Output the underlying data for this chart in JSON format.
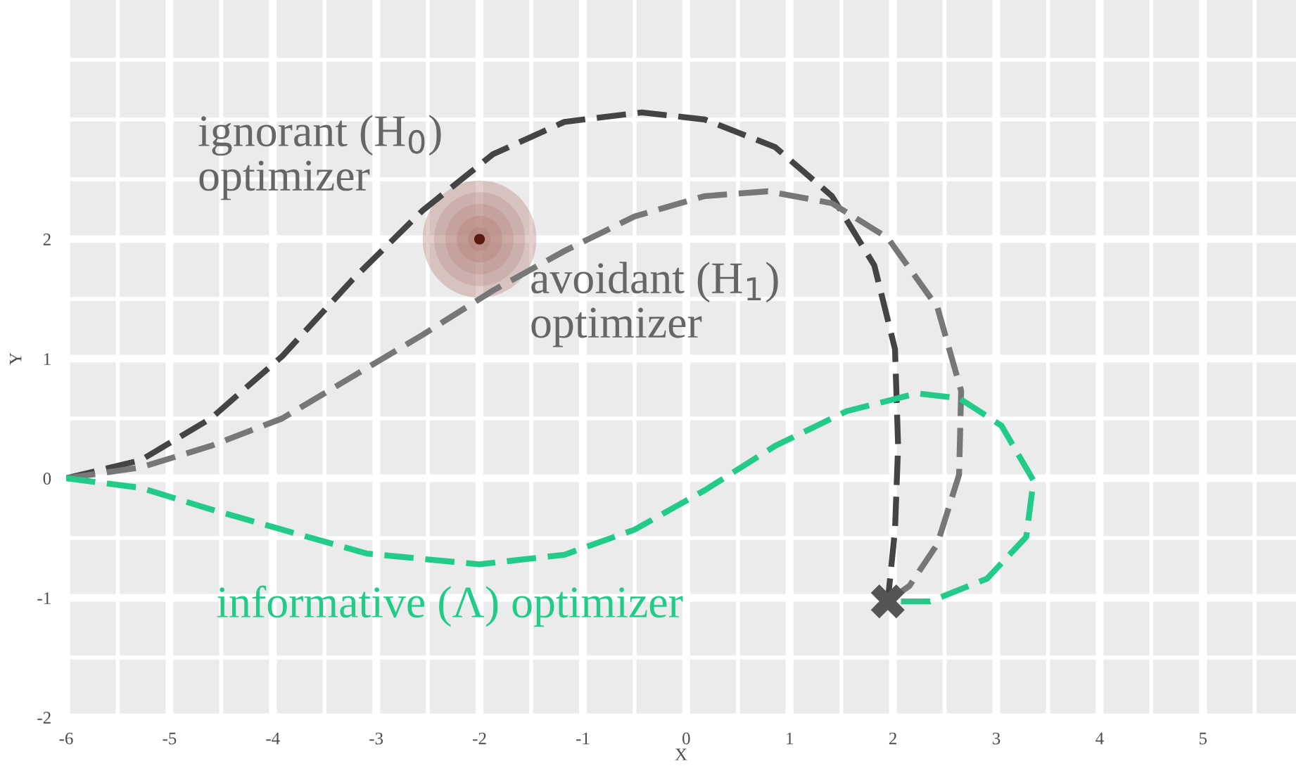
{
  "chart_data": {
    "type": "line",
    "xlabel": "X",
    "ylabel": "Y",
    "xlim": [
      -6,
      5.9
    ],
    "ylim": [
      -2,
      4
    ],
    "xticks": [
      -6,
      -5,
      -4,
      -3,
      -2,
      -1,
      0,
      1,
      2,
      3,
      4,
      5
    ],
    "yticks": [
      -2,
      -1,
      0,
      1,
      2
    ],
    "grid": true,
    "legend": false,
    "line_style": "dashed",
    "series": [
      {
        "color": "#444444",
        "x": [
          -6,
          -5.28,
          -4.6,
          -3.91,
          -3.23,
          -2.55,
          -1.87,
          -1.18,
          -0.43,
          0.18,
          0.86,
          1.41,
          1.82,
          2.02,
          2.05,
          2.02,
          1.95
        ],
        "values": [
          0,
          0.15,
          0.5,
          1.02,
          1.66,
          2.24,
          2.71,
          2.98,
          3.06,
          3.0,
          2.77,
          2.36,
          1.78,
          1.08,
          0.27,
          -0.43,
          -1.03
        ]
      },
      {
        "color": "#777777",
        "x": [
          -6,
          -5.28,
          -4.6,
          -3.91,
          -3.23,
          -2.55,
          -1.87,
          -1.18,
          -0.5,
          0.18,
          0.79,
          1.41,
          1.95,
          2.43,
          2.66,
          2.64,
          2.43,
          2.16,
          1.95
        ],
        "values": [
          0,
          0.09,
          0.27,
          0.5,
          0.85,
          1.2,
          1.57,
          1.9,
          2.19,
          2.36,
          2.4,
          2.3,
          2.01,
          1.43,
          0.73,
          0.03,
          -0.55,
          -0.9,
          -1.03
        ]
      },
      {
        "color": "#22cc88",
        "x": [
          -6,
          -5.28,
          -4.6,
          -3.91,
          -3.09,
          -2.0,
          -1.18,
          -0.5,
          0.18,
          0.86,
          1.55,
          2.23,
          2.64,
          3.05,
          3.36,
          3.29,
          2.91,
          2.36,
          1.95
        ],
        "values": [
          0,
          -0.08,
          -0.26,
          -0.43,
          -0.63,
          -0.72,
          -0.64,
          -0.43,
          -0.1,
          0.27,
          0.56,
          0.71,
          0.67,
          0.44,
          -0.02,
          -0.49,
          -0.84,
          -1.03,
          -1.03
        ]
      },
      {
        "type": "scatter",
        "marker": "circle",
        "color": "#5a1a10",
        "x": [
          -2
        ],
        "values": [
          2
        ]
      },
      {
        "type": "scatter",
        "marker": "cross",
        "color": "#555555",
        "x": [
          1.95
        ],
        "values": [
          -1.03
        ]
      }
    ],
    "annotations": [
      "ignorant (H$_{0}$)\noptimizer",
      "avoidant (H$_{1}$)\noptimizer",
      "informative (Λ) optimizer"
    ]
  }
}
